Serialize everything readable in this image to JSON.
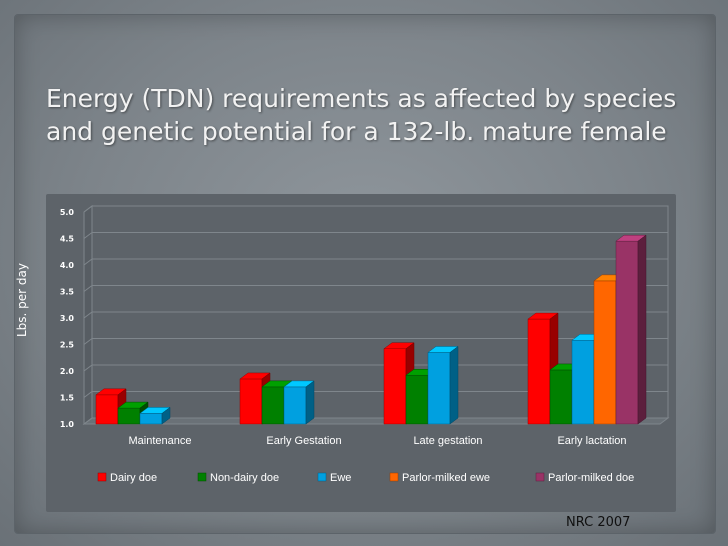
{
  "slide": {
    "title_line1": "Energy (TDN) requirements as affected by species",
    "title_line2": "and genetic potential for a 132-lb. mature female",
    "source": "NRC 2007"
  },
  "chart_data": {
    "type": "bar",
    "title": "",
    "xlabel": "",
    "ylabel": "Lbs. per day",
    "ylim": [
      1.0,
      5.0
    ],
    "yticks": [
      "1.0",
      "1.5",
      "2.0",
      "2.5",
      "3.0",
      "3.5",
      "4.0",
      "4.5",
      "5.0"
    ],
    "categories": [
      "Maintenance",
      "Early Gestation",
      "Late gestation",
      "Early lactation"
    ],
    "series": [
      {
        "name": "Dairy doe",
        "color": "#ff0000",
        "values": [
          1.55,
          1.85,
          2.42,
          2.98
        ]
      },
      {
        "name": "Non-dairy doe",
        "color": "#008000",
        "values": [
          1.3,
          1.7,
          1.92,
          2.02
        ]
      },
      {
        "name": "Ewe",
        "color": "#00a0e0",
        "values": [
          1.2,
          1.7,
          2.35,
          2.58
        ]
      },
      {
        "name": "Parlor-milked ewe",
        "color": "#ff6600",
        "values": [
          null,
          null,
          null,
          3.7
        ]
      },
      {
        "name": "Parlor-milked doe",
        "color": "#993366",
        "values": [
          null,
          null,
          null,
          4.45
        ]
      }
    ],
    "legend_position": "bottom",
    "grid": true,
    "style": "3d"
  }
}
